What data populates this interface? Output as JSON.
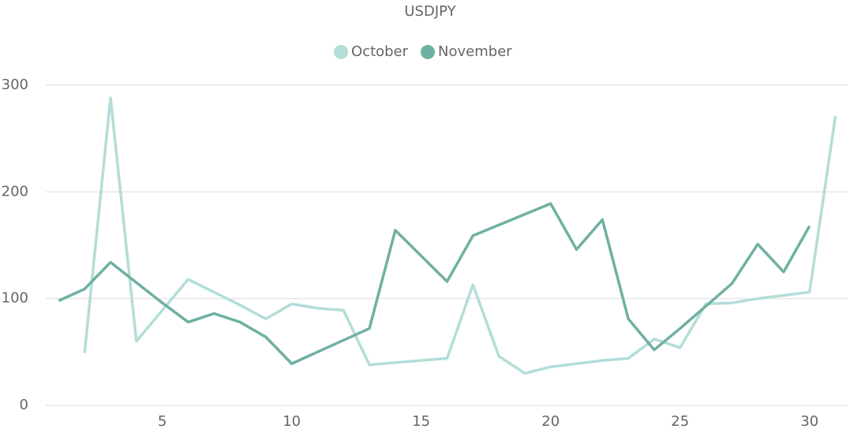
{
  "chart_data": {
    "type": "line",
    "title": "USDJPY",
    "x": [
      1,
      2,
      3,
      4,
      5,
      6,
      7,
      8,
      9,
      10,
      11,
      12,
      13,
      14,
      15,
      16,
      17,
      18,
      19,
      20,
      21,
      22,
      23,
      24,
      25,
      26,
      27,
      28,
      29,
      30,
      31
    ],
    "series": [
      {
        "name": "October",
        "color": "#b3ddd8",
        "values": [
          null,
          49,
          288,
          60,
          89,
          118,
          106,
          94,
          81,
          95,
          91,
          89,
          38,
          40,
          42,
          44,
          113,
          46,
          30,
          36,
          39,
          42,
          44,
          62,
          54,
          95,
          96,
          100,
          103,
          106,
          271
        ]
      },
      {
        "name": "November",
        "color": "#6fb0a3",
        "values": [
          98,
          109,
          134,
          115,
          96,
          78,
          86,
          78,
          64,
          39,
          50,
          61,
          72,
          164,
          140,
          116,
          159,
          169,
          179,
          189,
          146,
          174,
          81,
          52,
          72,
          93,
          114,
          151,
          125,
          168,
          null
        ]
      }
    ],
    "xlim": [
      0.5,
      31.5
    ],
    "xticks": [
      5,
      10,
      15,
      20,
      25,
      30
    ],
    "ylim": [
      0,
      300
    ],
    "yticks": [
      0,
      100,
      200,
      300
    ],
    "grid": true
  }
}
